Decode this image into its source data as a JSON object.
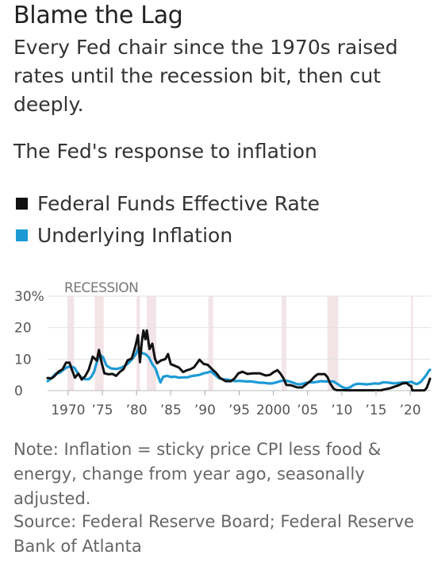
{
  "header": {
    "title": "Blame the Lag",
    "subtitle": "Every Fed chair since the 1970s raised rates until the recession bit, then cut deeply."
  },
  "chart_data": {
    "type": "line",
    "title": "The Fed's response to inflation",
    "recession_label": "RECESSION",
    "xlim": [
      1967,
      2023
    ],
    "ylim": [
      0,
      30
    ],
    "y_ticks": [
      {
        "value": 30,
        "label": "30%"
      },
      {
        "value": 20,
        "label": "20"
      },
      {
        "value": 10,
        "label": "10"
      },
      {
        "value": 0,
        "label": "0"
      }
    ],
    "x_ticks": [
      {
        "value": 1970,
        "label": "1970"
      },
      {
        "value": 1975,
        "label": "’75"
      },
      {
        "value": 1980,
        "label": "’80"
      },
      {
        "value": 1985,
        "label": "’85"
      },
      {
        "value": 1990,
        "label": "’90"
      },
      {
        "value": 1995,
        "label": "’95"
      },
      {
        "value": 2000,
        "label": "2000"
      },
      {
        "value": 2005,
        "label": "’05"
      },
      {
        "value": 2010,
        "label": "’10"
      },
      {
        "value": 2015,
        "label": "’15"
      },
      {
        "value": 2020,
        "label": "’20"
      }
    ],
    "recessions": [
      [
        1969.9,
        1970.9
      ],
      [
        1973.9,
        1975.2
      ],
      [
        1980.0,
        1980.5
      ],
      [
        1981.5,
        1982.9
      ],
      [
        1990.5,
        1991.2
      ],
      [
        2001.2,
        2001.9
      ],
      [
        2007.9,
        2009.5
      ],
      [
        2020.1,
        2020.4
      ]
    ],
    "series": [
      {
        "name": "Federal Funds Effective Rate",
        "color": "#111111",
        "points": [
          [
            1967.0,
            4.0
          ],
          [
            1967.6,
            3.9
          ],
          [
            1968.0,
            4.6
          ],
          [
            1968.6,
            6.0
          ],
          [
            1969.2,
            6.8
          ],
          [
            1969.7,
            8.9
          ],
          [
            1970.2,
            8.9
          ],
          [
            1970.6,
            6.4
          ],
          [
            1971.0,
            4.1
          ],
          [
            1971.5,
            5.4
          ],
          [
            1972.0,
            3.5
          ],
          [
            1972.5,
            4.6
          ],
          [
            1973.0,
            6.6
          ],
          [
            1973.6,
            10.8
          ],
          [
            1974.2,
            9.5
          ],
          [
            1974.5,
            12.9
          ],
          [
            1974.9,
            8.9
          ],
          [
            1975.3,
            5.5
          ],
          [
            1975.9,
            5.2
          ],
          [
            1976.5,
            5.3
          ],
          [
            1977.0,
            4.7
          ],
          [
            1977.6,
            6.0
          ],
          [
            1978.1,
            6.8
          ],
          [
            1978.7,
            9.6
          ],
          [
            1979.3,
            10.2
          ],
          [
            1979.8,
            13.8
          ],
          [
            1980.2,
            17.6
          ],
          [
            1980.5,
            9.0
          ],
          [
            1980.8,
            15.9
          ],
          [
            1981.0,
            19.1
          ],
          [
            1981.3,
            16.3
          ],
          [
            1981.5,
            19.1
          ],
          [
            1981.9,
            13.2
          ],
          [
            1982.3,
            14.9
          ],
          [
            1982.7,
            10.1
          ],
          [
            1983.0,
            8.7
          ],
          [
            1983.6,
            9.6
          ],
          [
            1984.2,
            10.0
          ],
          [
            1984.6,
            11.6
          ],
          [
            1985.0,
            8.4
          ],
          [
            1985.6,
            7.9
          ],
          [
            1986.2,
            7.3
          ],
          [
            1986.8,
            5.9
          ],
          [
            1987.3,
            6.4
          ],
          [
            1987.9,
            6.8
          ],
          [
            1988.4,
            7.4
          ],
          [
            1989.2,
            9.8
          ],
          [
            1989.8,
            8.5
          ],
          [
            1990.4,
            8.2
          ],
          [
            1991.0,
            6.9
          ],
          [
            1991.6,
            5.7
          ],
          [
            1992.2,
            4.0
          ],
          [
            1993.0,
            3.0
          ],
          [
            1993.8,
            3.0
          ],
          [
            1994.3,
            3.8
          ],
          [
            1994.9,
            5.5
          ],
          [
            1995.5,
            6.0
          ],
          [
            1996.2,
            5.3
          ],
          [
            1997.0,
            5.5
          ],
          [
            1998.0,
            5.5
          ],
          [
            1998.9,
            4.8
          ],
          [
            1999.5,
            5.0
          ],
          [
            2000.0,
            5.8
          ],
          [
            2000.6,
            6.5
          ],
          [
            2001.0,
            5.5
          ],
          [
            2001.5,
            3.8
          ],
          [
            2001.9,
            1.8
          ],
          [
            2002.6,
            1.7
          ],
          [
            2003.5,
            1.0
          ],
          [
            2004.2,
            1.0
          ],
          [
            2004.8,
            2.0
          ],
          [
            2005.5,
            3.2
          ],
          [
            2006.0,
            4.4
          ],
          [
            2006.5,
            5.25
          ],
          [
            2007.5,
            5.25
          ],
          [
            2007.9,
            4.3
          ],
          [
            2008.3,
            2.3
          ],
          [
            2008.8,
            0.6
          ],
          [
            2009.2,
            0.15
          ],
          [
            2011.0,
            0.1
          ],
          [
            2013.0,
            0.1
          ],
          [
            2015.8,
            0.12
          ],
          [
            2016.2,
            0.37
          ],
          [
            2017.0,
            0.7
          ],
          [
            2017.6,
            1.15
          ],
          [
            2018.3,
            1.7
          ],
          [
            2018.9,
            2.3
          ],
          [
            2019.5,
            2.4
          ],
          [
            2019.9,
            1.6
          ],
          [
            2020.15,
            1.5
          ],
          [
            2020.3,
            0.05
          ],
          [
            2021.5,
            0.08
          ],
          [
            2022.1,
            0.1
          ],
          [
            2022.4,
            0.8
          ],
          [
            2022.7,
            2.5
          ],
          [
            2022.9,
            3.8
          ]
        ]
      },
      {
        "name": "Underlying Inflation",
        "color": "#1d9ad6",
        "points": [
          [
            1967.0,
            3.0
          ],
          [
            1967.6,
            4.0
          ],
          [
            1968.2,
            5.4
          ],
          [
            1968.8,
            5.7
          ],
          [
            1969.3,
            6.6
          ],
          [
            1969.9,
            7.5
          ],
          [
            1970.4,
            7.6
          ],
          [
            1970.9,
            7.3
          ],
          [
            1971.4,
            5.6
          ],
          [
            1971.9,
            4.2
          ],
          [
            1972.5,
            3.6
          ],
          [
            1973.0,
            3.6
          ],
          [
            1973.4,
            4.4
          ],
          [
            1973.8,
            6.0
          ],
          [
            1974.3,
            9.8
          ],
          [
            1974.7,
            11.3
          ],
          [
            1975.1,
            10.6
          ],
          [
            1975.6,
            8.0
          ],
          [
            1976.2,
            7.1
          ],
          [
            1976.7,
            6.9
          ],
          [
            1977.2,
            6.9
          ],
          [
            1977.8,
            7.3
          ],
          [
            1978.4,
            8.0
          ],
          [
            1978.9,
            8.9
          ],
          [
            1979.4,
            10.1
          ],
          [
            1979.9,
            11.6
          ],
          [
            1980.3,
            13.6
          ],
          [
            1980.8,
            11.9
          ],
          [
            1981.3,
            11.6
          ],
          [
            1981.8,
            10.6
          ],
          [
            1982.3,
            8.4
          ],
          [
            1982.8,
            6.9
          ],
          [
            1983.2,
            4.3
          ],
          [
            1983.5,
            2.6
          ],
          [
            1983.9,
            4.4
          ],
          [
            1984.5,
            4.7
          ],
          [
            1985.0,
            4.3
          ],
          [
            1985.6,
            4.4
          ],
          [
            1986.2,
            4.1
          ],
          [
            1986.8,
            4.2
          ],
          [
            1987.4,
            4.2
          ],
          [
            1988.0,
            4.6
          ],
          [
            1988.6,
            4.8
          ],
          [
            1989.2,
            5.0
          ],
          [
            1989.8,
            5.5
          ],
          [
            1990.3,
            5.7
          ],
          [
            1990.9,
            6.1
          ],
          [
            1991.4,
            5.1
          ],
          [
            1992.0,
            4.0
          ],
          [
            1992.6,
            3.6
          ],
          [
            1993.2,
            3.5
          ],
          [
            1993.8,
            3.3
          ],
          [
            1994.4,
            3.0
          ],
          [
            1995.0,
            3.1
          ],
          [
            1995.6,
            3.0
          ],
          [
            1996.2,
            2.9
          ],
          [
            1996.8,
            2.9
          ],
          [
            1997.4,
            2.7
          ],
          [
            1998.0,
            2.5
          ],
          [
            1998.6,
            2.5
          ],
          [
            1999.2,
            2.3
          ],
          [
            1999.8,
            2.3
          ],
          [
            2000.4,
            2.6
          ],
          [
            2001.0,
            3.0
          ],
          [
            2001.6,
            3.2
          ],
          [
            2002.2,
            3.0
          ],
          [
            2002.8,
            2.6
          ],
          [
            2003.4,
            2.1
          ],
          [
            2004.0,
            2.0
          ],
          [
            2004.6,
            2.4
          ],
          [
            2005.2,
            2.6
          ],
          [
            2005.8,
            2.6
          ],
          [
            2006.4,
            2.8
          ],
          [
            2007.0,
            3.0
          ],
          [
            2007.6,
            2.9
          ],
          [
            2008.2,
            2.9
          ],
          [
            2008.8,
            2.9
          ],
          [
            2009.4,
            2.1
          ],
          [
            2010.0,
            1.2
          ],
          [
            2010.6,
            0.7
          ],
          [
            2011.2,
            1.0
          ],
          [
            2011.8,
            1.9
          ],
          [
            2012.4,
            2.2
          ],
          [
            2013.0,
            2.1
          ],
          [
            2013.6,
            2.0
          ],
          [
            2014.2,
            2.1
          ],
          [
            2014.8,
            2.3
          ],
          [
            2015.4,
            2.2
          ],
          [
            2016.0,
            2.6
          ],
          [
            2016.6,
            2.6
          ],
          [
            2017.2,
            2.4
          ],
          [
            2017.8,
            2.3
          ],
          [
            2018.4,
            2.5
          ],
          [
            2019.0,
            2.6
          ],
          [
            2019.6,
            2.6
          ],
          [
            2020.2,
            2.8
          ],
          [
            2020.6,
            2.3
          ],
          [
            2021.0,
            2.1
          ],
          [
            2021.5,
            2.7
          ],
          [
            2021.9,
            3.7
          ],
          [
            2022.3,
            4.8
          ],
          [
            2022.7,
            6.2
          ],
          [
            2022.9,
            6.6
          ]
        ]
      }
    ]
  },
  "legend": {
    "items": [
      {
        "label": "Federal Funds Effective Rate",
        "color": "#111111"
      },
      {
        "label": "Underlying Inflation",
        "color": "#1d9ad6"
      }
    ]
  },
  "footer": {
    "note": "Note: Inflation = sticky price CPI less food & energy, change from year ago, seasonally adjusted.",
    "source": "Source: Federal Reserve Board; Federal Reserve Bank of Atlanta"
  }
}
